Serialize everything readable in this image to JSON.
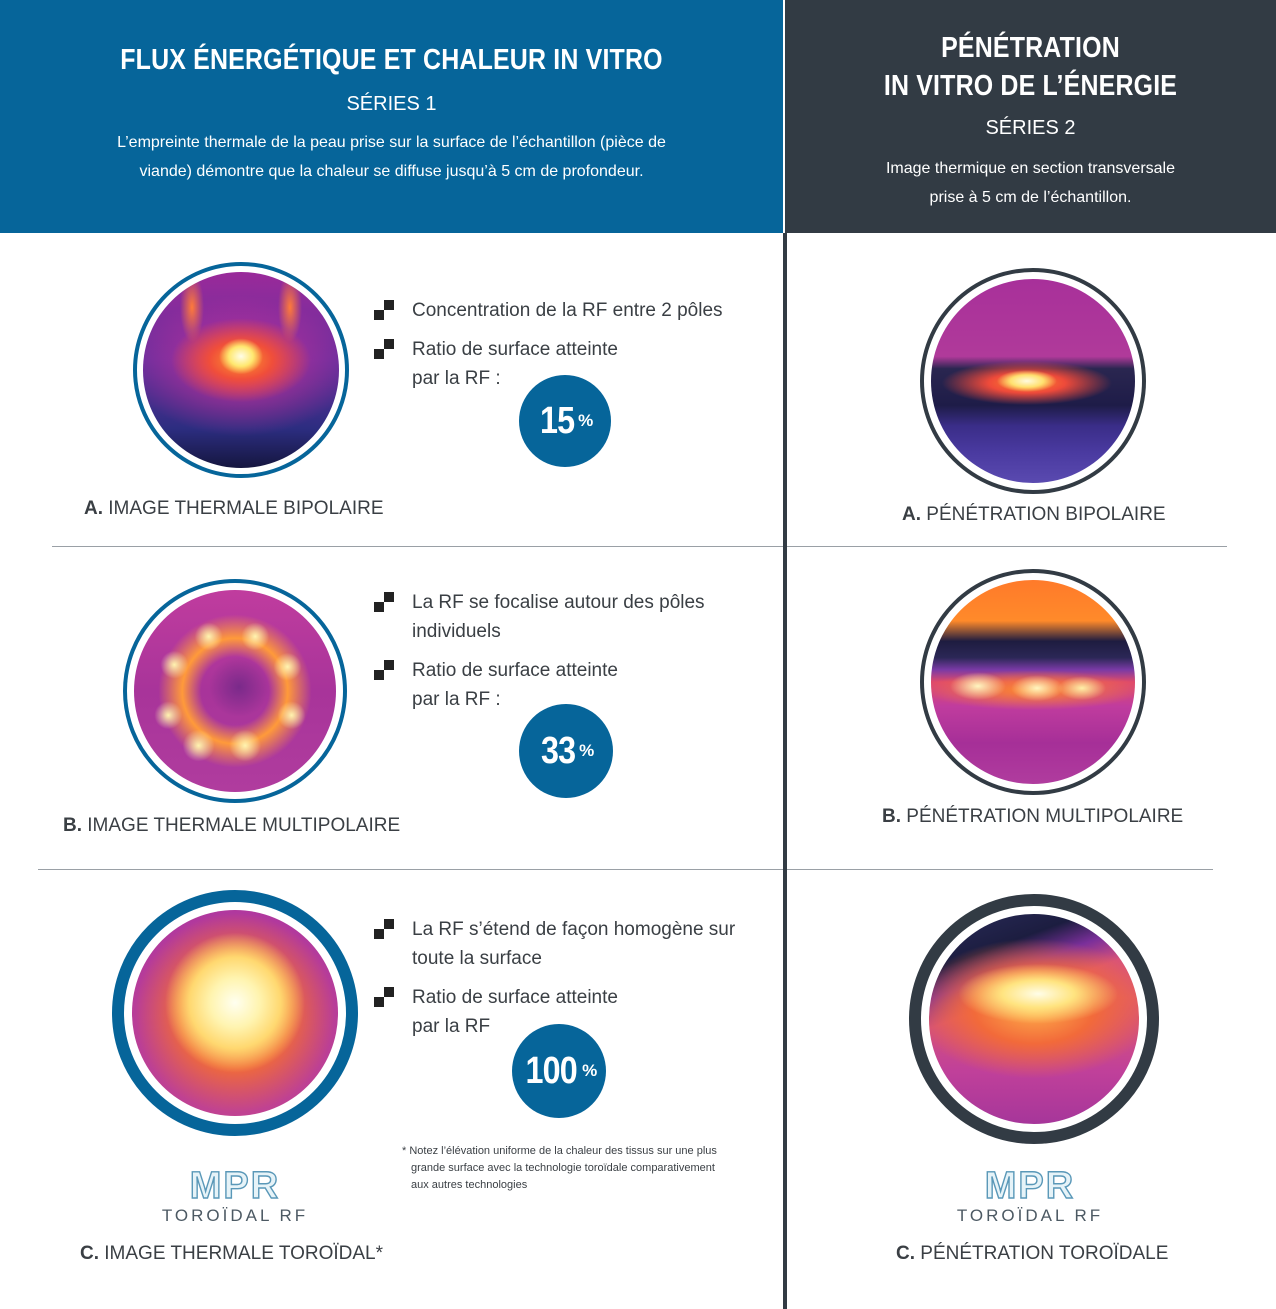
{
  "left_header": {
    "title": "FLUX ÉNERGÉTIQUE ET CHALEUR IN VITRO",
    "series": "SÉRIES 1",
    "desc_line1": "L’empreinte thermale de la peau prise sur la surface de l’échantillon (pièce de",
    "desc_line2": "viande) démontre que la chaleur se diffuse jusqu’à 5 cm de profondeur."
  },
  "right_header": {
    "title_line1": "PÉNÉTRATION",
    "title_line2": "IN VITRO DE L’ÉNERGIE",
    "series": "SÉRIES 2",
    "desc_line1": "Image thermique en section transversale",
    "desc_line2": "prise à 5 cm de l’échantillon."
  },
  "rows": [
    {
      "bullet1": [
        "Concentration de la RF entre 2 pôles"
      ],
      "bullet2": [
        "Ratio de surface atteinte",
        "par la RF :"
      ],
      "percent": "15",
      "percent_sign": "%",
      "left_caption_letter": "A.",
      "left_caption": "IMAGE THERMALE BIPOLAIRE",
      "right_caption_letter": "A.",
      "right_caption": "PÉNÉTRATION BIPOLAIRE"
    },
    {
      "bullet1": [
        "La RF se focalise autour des pôles",
        "individuels"
      ],
      "bullet2": [
        "Ratio de surface atteinte",
        "par la RF :"
      ],
      "percent": "33",
      "percent_sign": "%",
      "left_caption_letter": "B.",
      "left_caption": "IMAGE THERMALE MULTIPOLAIRE",
      "right_caption_letter": "B.",
      "right_caption": "PÉNÉTRATION MULTIPOLAIRE"
    },
    {
      "bullet1": [
        "La RF s’étend de façon homogène sur",
        "toute la surface"
      ],
      "bullet2": [
        "Ratio de surface atteinte",
        "par la RF"
      ],
      "percent": "100",
      "percent_sign": "%",
      "left_caption_letter": "C.",
      "left_caption": "IMAGE THERMALE TOROÏDAL*",
      "right_caption_letter": "C.",
      "right_caption": "PÉNÉTRATION TOROÏDALE"
    }
  ],
  "note": {
    "line1": "* Notez l’élévation uniforme de la chaleur des tissus sur une plus",
    "line2": "grande surface avec la technologie toroïdale comparativement",
    "line3": "aux autres technologies"
  },
  "logo": {
    "mark": "MPR",
    "sub": "TOROÏDAL RF"
  },
  "colors": {
    "blue": "#06659a",
    "dark": "#323b44",
    "text": "#3a3f44"
  }
}
